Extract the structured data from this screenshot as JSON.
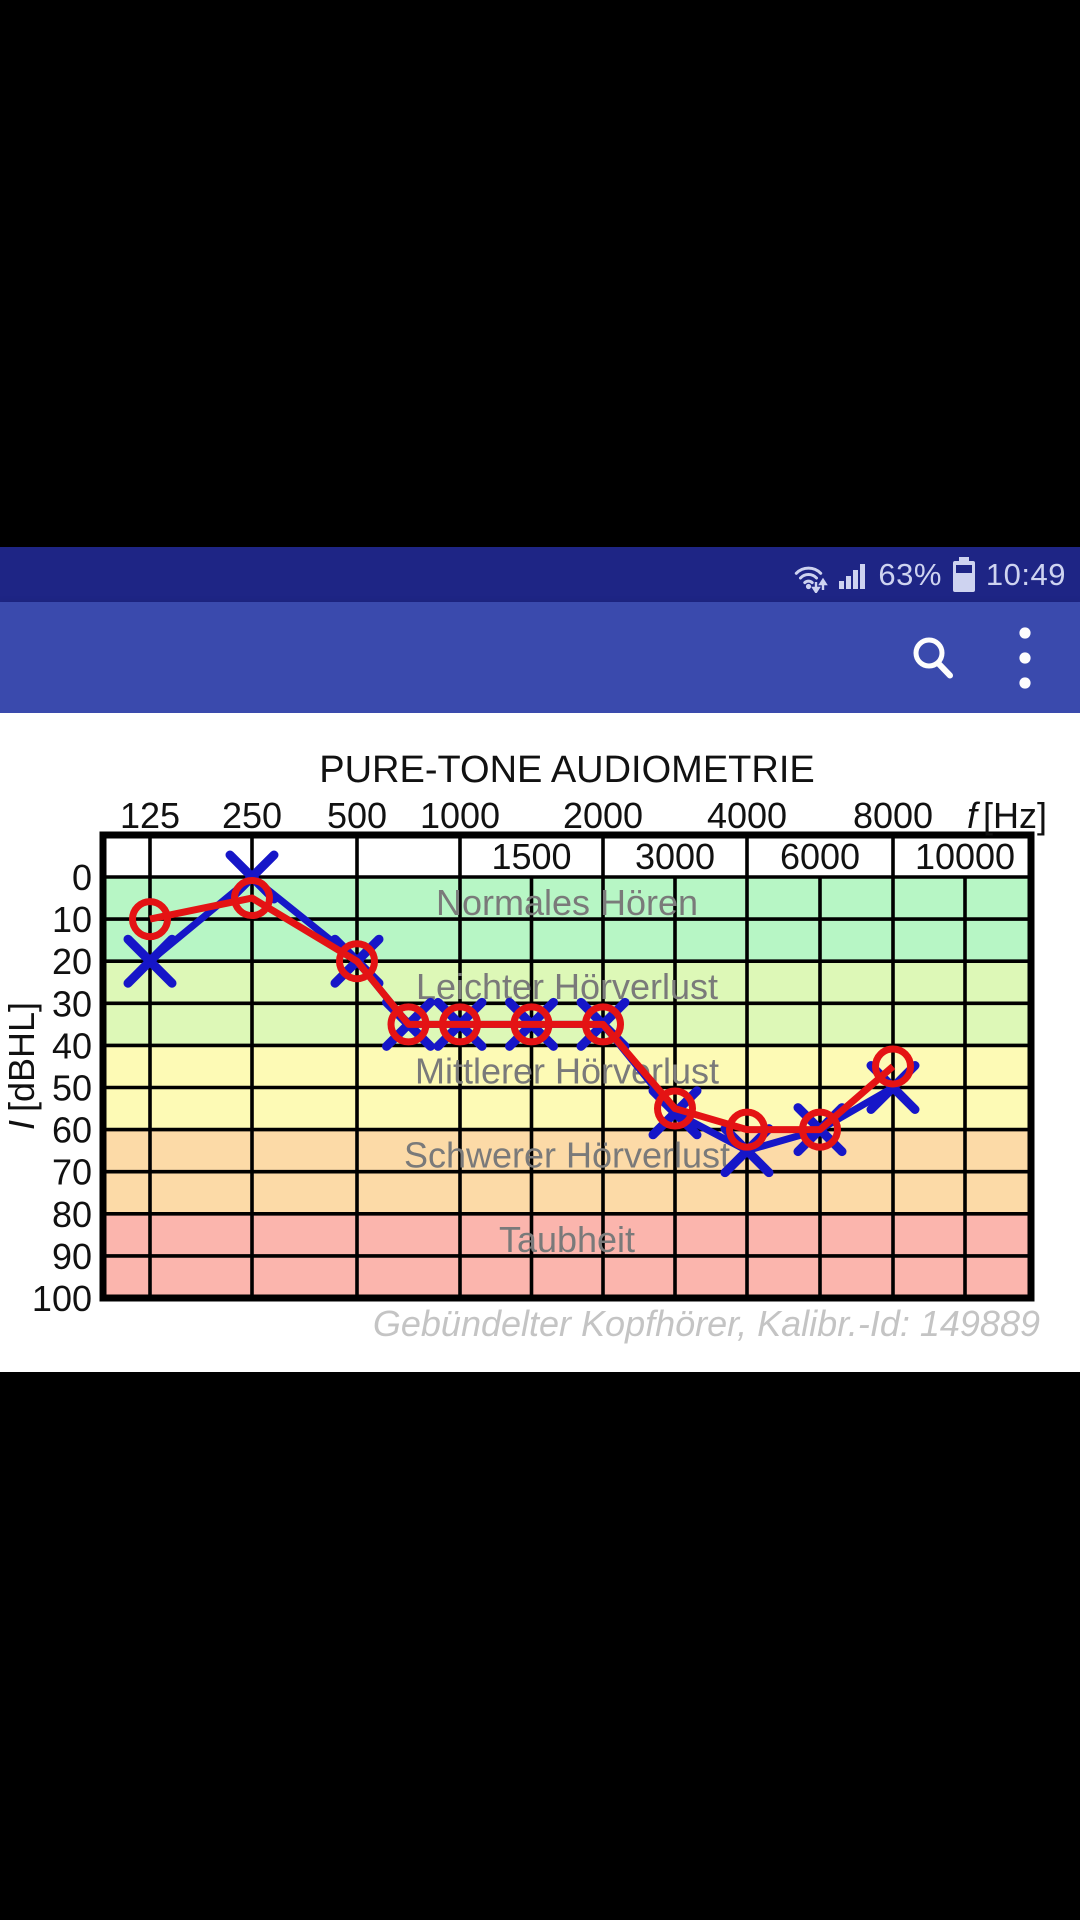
{
  "status_bar": {
    "battery_percent": "63%",
    "time": "10:49",
    "icons": [
      "wifi-icon",
      "signal-strength-icon",
      "battery-icon"
    ]
  },
  "app_bar": {
    "title": "",
    "actions": [
      "search",
      "overflow-menu"
    ]
  },
  "colors": {
    "status_bar_bg": "#1e2585",
    "app_bar_bg": "#3a4aad",
    "status_content": "#ced3f0",
    "icon_white": "#fdfdfd",
    "grid_line": "#000000",
    "zone_label": "#7a7a7a",
    "footnote": "#c4c4c4",
    "series_red": "#e41314",
    "series_blue": "#1616c8"
  },
  "chart_data": {
    "type": "line",
    "title": "PURE-TONE AUDIOMETRIE",
    "x_axis": {
      "unit_symbol": "f",
      "unit_text": "[Hz]",
      "primary_ticks": [
        125,
        250,
        500,
        1000,
        2000,
        4000,
        8000
      ],
      "secondary_ticks": [
        1500,
        3000,
        6000,
        10000
      ]
    },
    "y_axis": {
      "unit_symbol": "I",
      "unit_text": "[dBHL]",
      "ticks": [
        0,
        10,
        20,
        30,
        40,
        50,
        60,
        70,
        80,
        90,
        100
      ],
      "min": 0,
      "max": 100
    },
    "zones": [
      {
        "label": "Normales Hören",
        "from": 0,
        "to": 20,
        "color": "#b7f6c5"
      },
      {
        "label": "Leichter Hörverlust",
        "from": 20,
        "to": 40,
        "color": "#ddf8b7"
      },
      {
        "label": "Mittlerer Hörverlust",
        "from": 40,
        "to": 60,
        "color": "#fdfab5"
      },
      {
        "label": "Schwerer Hörverlust",
        "from": 60,
        "to": 80,
        "color": "#fcdaa7"
      },
      {
        "label": "Taubheit",
        "from": 80,
        "to": 100,
        "color": "#fbb5ad"
      }
    ],
    "series": [
      {
        "name": "circle-series-red",
        "marker": "circle",
        "color": "#e41314",
        "points": [
          [
            125,
            10
          ],
          [
            250,
            5
          ],
          [
            500,
            20
          ],
          [
            750,
            35
          ],
          [
            1000,
            35
          ],
          [
            1500,
            35
          ],
          [
            2000,
            35
          ],
          [
            3000,
            55
          ],
          [
            4000,
            60
          ],
          [
            6000,
            60
          ],
          [
            8000,
            45
          ]
        ]
      },
      {
        "name": "cross-series-blue",
        "marker": "cross",
        "color": "#1616c8",
        "points": [
          [
            125,
            20
          ],
          [
            250,
            0
          ],
          [
            500,
            20
          ],
          [
            750,
            35
          ],
          [
            1000,
            35
          ],
          [
            1500,
            35
          ],
          [
            2000,
            35
          ],
          [
            3000,
            56
          ],
          [
            4000,
            65
          ],
          [
            6000,
            60
          ],
          [
            8000,
            50
          ]
        ]
      }
    ],
    "footnote": "Gebündelter Kopfhörer, Kalibr.-Id: 149889"
  }
}
